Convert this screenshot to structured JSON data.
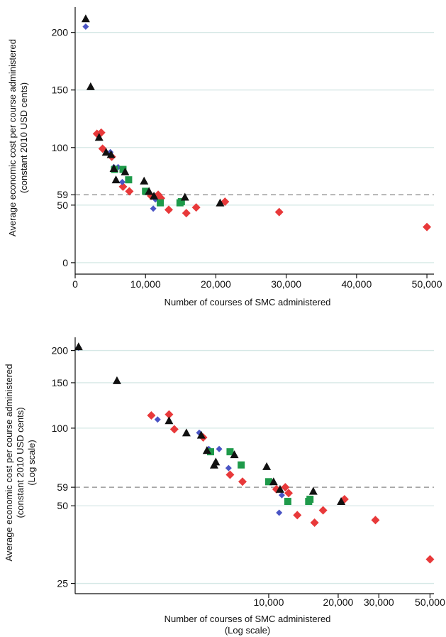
{
  "colors": {
    "red_series": "#e8393a",
    "blue_series": "#4a54c4",
    "green_series": "#1e9a4a",
    "black_series": "#111111",
    "gridline": "#d6e8e6",
    "reference_line": "#9a9a9a"
  },
  "chart_data": [
    {
      "type": "scatter",
      "title": "",
      "xlabel": "Number of courses of SMC administered",
      "ylabel_lines": [
        "Average economic cost per course administered",
        "(constant 2010 USD cents)"
      ],
      "xscale": "linear",
      "yscale": "linear",
      "xlim": [
        0,
        51000
      ],
      "ylim": [
        -5,
        222
      ],
      "x_ticks": [
        0,
        10000,
        20000,
        30000,
        40000,
        50000
      ],
      "x_tick_labels": [
        "0",
        "10,000",
        "20,000",
        "30,000",
        "40,000",
        "50,000"
      ],
      "y_ticks": [
        0,
        50,
        59,
        100,
        150,
        200
      ],
      "y_tick_labels": [
        "0",
        "50",
        "59",
        "100",
        "150",
        "200"
      ],
      "gridlines_at": [
        0,
        50,
        100,
        150,
        200
      ],
      "grid": true,
      "reference_line": {
        "y": 59,
        "style": "dashed"
      },
      "series": [
        {
          "marker": "diamond",
          "color": "red",
          "points": [
            [
              3100,
              112
            ],
            [
              3700,
              113
            ],
            [
              3900,
              99
            ],
            [
              5200,
              92
            ],
            [
              6800,
              66
            ],
            [
              7700,
              62
            ],
            [
              10800,
              58
            ],
            [
              11800,
              59
            ],
            [
              12200,
              56
            ],
            [
              13300,
              46
            ],
            [
              15800,
              43
            ],
            [
              17200,
              48
            ],
            [
              21300,
              53
            ],
            [
              29000,
              44
            ],
            [
              50000,
              31
            ]
          ]
        },
        {
          "marker": "diamond",
          "color": "blue",
          "points": [
            [
              1500,
              205
            ],
            [
              5000,
              96
            ],
            [
              5500,
              83
            ],
            [
              6100,
              83
            ],
            [
              6700,
              70
            ],
            [
              11100,
              47
            ],
            [
              11400,
              55
            ]
          ]
        },
        {
          "marker": "square",
          "color": "green",
          "points": [
            [
              5600,
              81
            ],
            [
              6800,
              81
            ],
            [
              7600,
              72
            ],
            [
              10000,
              62
            ],
            [
              12100,
              52
            ],
            [
              14900,
              52
            ],
            [
              15100,
              53
            ]
          ]
        },
        {
          "marker": "triangle",
          "color": "black",
          "points": [
            [
              1500,
              212
            ],
            [
              2200,
              153
            ],
            [
              3400,
              109
            ],
            [
              4400,
              96
            ],
            [
              5100,
              94
            ],
            [
              5500,
              82
            ],
            [
              5800,
              72
            ],
            [
              7100,
              79
            ],
            [
              9800,
              71
            ],
            [
              10500,
              62
            ],
            [
              11200,
              58
            ],
            [
              15600,
              57
            ],
            [
              20600,
              52
            ]
          ]
        }
      ]
    },
    {
      "type": "scatter",
      "title": "",
      "xlabel_lines": [
        "Number of courses of SMC administered",
        "(Log scale)"
      ],
      "ylabel_lines": [
        "Average economic cost per course administered",
        "(constant 2010 USD cents)",
        "(Log scale)"
      ],
      "xscale": "log",
      "yscale": "log",
      "xlim": [
        1450,
        52000
      ],
      "ylim": [
        24,
        225
      ],
      "x_ticks": [
        10000,
        20000,
        30000,
        50000
      ],
      "x_tick_labels": [
        "10,000",
        "20,000",
        "30,000",
        "50,000"
      ],
      "y_ticks": [
        25,
        50,
        59,
        100,
        150,
        200
      ],
      "y_tick_labels": [
        "25",
        "50",
        "59",
        "100",
        "150",
        "200"
      ],
      "gridlines_at": [
        25,
        50,
        100,
        150,
        200
      ],
      "grid": true,
      "reference_line": {
        "y": 59,
        "style": "dashed"
      },
      "series": [
        {
          "marker": "diamond",
          "color": "red",
          "points": [
            [
              3100,
              112
            ],
            [
              3700,
              113
            ],
            [
              3900,
              99
            ],
            [
              5200,
              92
            ],
            [
              6800,
              66
            ],
            [
              7700,
              62
            ],
            [
              10800,
              58
            ],
            [
              11800,
              59
            ],
            [
              12200,
              56
            ],
            [
              13300,
              46
            ],
            [
              15800,
              43
            ],
            [
              17200,
              48
            ],
            [
              21300,
              53
            ],
            [
              29000,
              44
            ],
            [
              50000,
              31
            ]
          ]
        },
        {
          "marker": "diamond",
          "color": "blue",
          "points": [
            [
              1500,
              205
            ],
            [
              3300,
              108
            ],
            [
              5000,
              96
            ],
            [
              5500,
              83
            ],
            [
              6100,
              83
            ],
            [
              6700,
              70
            ],
            [
              11100,
              47
            ],
            [
              11400,
              55
            ]
          ]
        },
        {
          "marker": "square",
          "color": "green",
          "points": [
            [
              5600,
              81
            ],
            [
              6800,
              81
            ],
            [
              7600,
              72
            ],
            [
              10000,
              62
            ],
            [
              12100,
              52
            ],
            [
              14900,
              52
            ],
            [
              15100,
              53
            ]
          ]
        },
        {
          "marker": "triangle",
          "color": "black",
          "points": [
            [
              1500,
              207
            ],
            [
              2200,
              153
            ],
            [
              3700,
              107
            ],
            [
              4400,
              96
            ],
            [
              5100,
              94
            ],
            [
              5400,
              82
            ],
            [
              5800,
              72
            ],
            [
              5900,
              74
            ],
            [
              7100,
              79
            ],
            [
              9800,
              71
            ],
            [
              10500,
              62
            ],
            [
              11200,
              58
            ],
            [
              15600,
              57
            ],
            [
              20600,
              52
            ]
          ]
        }
      ]
    }
  ]
}
